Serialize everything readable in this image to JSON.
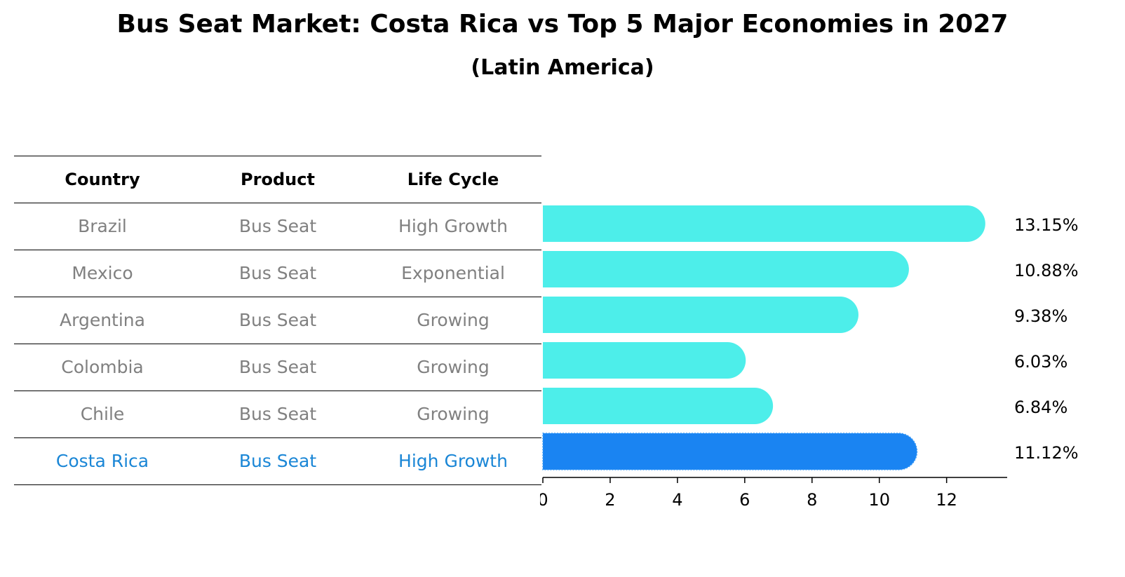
{
  "title": "Bus Seat Market: Costa Rica vs Top 5 Major Economies in 2027",
  "subtitle": "(Latin America)",
  "table": {
    "headers": [
      "Country",
      "Product",
      "Life Cycle"
    ],
    "rows": [
      {
        "country": "Brazil",
        "product": "Bus Seat",
        "life_cycle": "High Growth"
      },
      {
        "country": "Mexico",
        "product": "Bus Seat",
        "life_cycle": "Exponential"
      },
      {
        "country": "Argentina",
        "product": "Bus Seat",
        "life_cycle": "Growing"
      },
      {
        "country": "Colombia",
        "product": "Bus Seat",
        "life_cycle": "Growing"
      },
      {
        "country": "Chile",
        "product": "Bus Seat",
        "life_cycle": "Growing"
      },
      {
        "country": "Costa Rica",
        "product": "Bus Seat",
        "life_cycle": "High Growth"
      }
    ]
  },
  "colors": {
    "bar": "#4deeea",
    "highlight_bar": "#1a84f2",
    "row_text": "#808080",
    "highlight_text": "#1a86d6"
  },
  "chart_data": {
    "type": "bar",
    "orientation": "horizontal",
    "categories": [
      "Brazil",
      "Mexico",
      "Argentina",
      "Colombia",
      "Chile",
      "Costa Rica"
    ],
    "values": [
      13.15,
      10.88,
      9.38,
      6.03,
      6.84,
      11.12
    ],
    "value_labels": [
      "13.15%",
      "10.88%",
      "9.38%",
      "6.03%",
      "6.84%",
      "11.12%"
    ],
    "highlight": "Costa Rica",
    "xlim": [
      0,
      13.8
    ],
    "xticks": [
      0,
      2,
      4,
      6,
      8,
      10,
      12
    ],
    "xlabel": "",
    "ylabel": ""
  }
}
